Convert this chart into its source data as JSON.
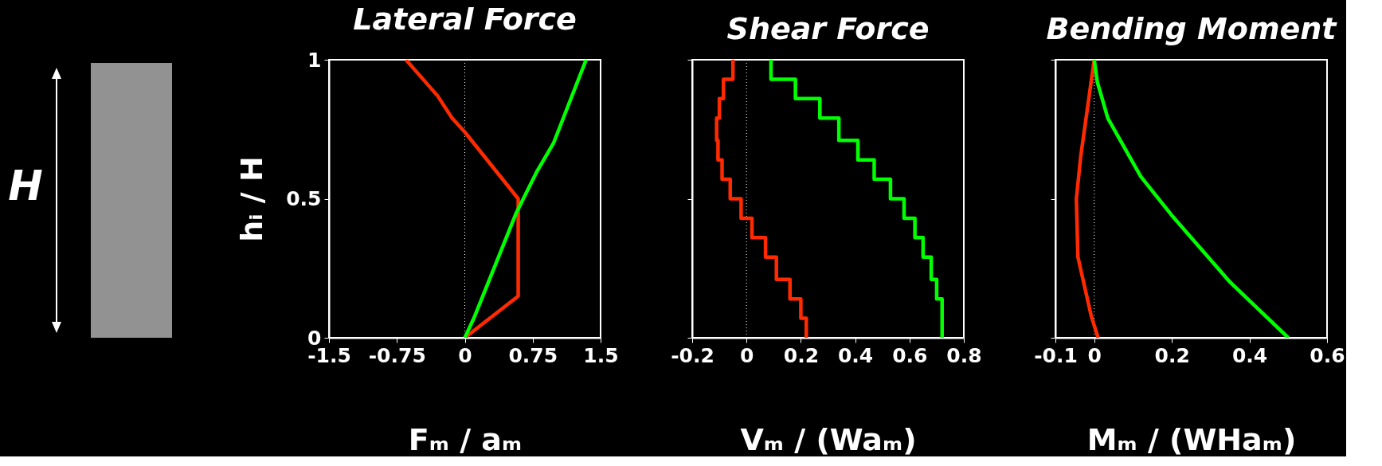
{
  "chart_data": [
    {
      "type": "other",
      "annotations": [
        "H"
      ]
    },
    {
      "type": "line",
      "title": "Lateral Force",
      "xlabel": "Fₘ / aₘ",
      "ylabel": "hᵢ / H",
      "xlim": [
        -1.5,
        1.5
      ],
      "xticks": [
        -1.5,
        -0.75,
        0,
        0.75,
        1.5
      ],
      "ylim": [
        0,
        1
      ],
      "yticks": [
        0,
        0.5,
        1
      ],
      "grid": false,
      "line_style": "solid",
      "ref_lines": [
        {
          "axis": "x",
          "value": 0,
          "line_style": "dotted",
          "color": "#ffffff"
        }
      ],
      "series": [
        {
          "color": "#ff2a00",
          "x": [
            -0.65,
            -0.3,
            -0.14,
            0,
            0.59,
            0.59,
            0
          ],
          "values": [
            1,
            0.87,
            0.79,
            0.74,
            0.5,
            0.15,
            0
          ]
        },
        {
          "color": "#00ff00",
          "x": [
            0,
            0.1,
            0.57,
            0.8,
            0.98,
            1.34
          ],
          "values": [
            0,
            0.07,
            0.45,
            0.6,
            0.7,
            1
          ]
        }
      ]
    },
    {
      "type": "line",
      "title": "Shear Force",
      "xlabel": "Vₘ / (Waₘ)",
      "xlim": [
        -0.2,
        0.8
      ],
      "xticks": [
        -0.2,
        0,
        0.2,
        0.4,
        0.6,
        0.8
      ],
      "ylim": [
        0,
        1
      ],
      "yticks": [
        0,
        0.5,
        1
      ],
      "tick_labels": "x",
      "grid": false,
      "line_style": "solid",
      "ref_lines": [
        {
          "axis": "x",
          "value": 0,
          "line_style": "dotted",
          "color": "#ffffff"
        }
      ],
      "series": [
        {
          "color": "#ff2a00",
          "x": [
            -0.05,
            -0.05,
            -0.085,
            -0.085,
            -0.1,
            -0.1,
            -0.11,
            -0.11,
            -0.105,
            -0.105,
            -0.09,
            -0.09,
            -0.06,
            -0.06,
            -0.02,
            -0.02,
            0.02,
            0.02,
            0.07,
            0.07,
            0.11,
            0.11,
            0.16,
            0.16,
            0.2,
            0.2,
            0.22,
            0.22
          ],
          "values": [
            1,
            0.93,
            0.93,
            0.86,
            0.86,
            0.79,
            0.79,
            0.71,
            0.71,
            0.64,
            0.64,
            0.57,
            0.57,
            0.5,
            0.5,
            0.43,
            0.43,
            0.36,
            0.36,
            0.29,
            0.29,
            0.21,
            0.21,
            0.14,
            0.14,
            0.07,
            0.07,
            0
          ]
        },
        {
          "color": "#00ff00",
          "x": [
            0.09,
            0.09,
            0.18,
            0.18,
            0.27,
            0.27,
            0.34,
            0.34,
            0.41,
            0.41,
            0.47,
            0.47,
            0.53,
            0.53,
            0.58,
            0.58,
            0.62,
            0.62,
            0.65,
            0.65,
            0.68,
            0.68,
            0.7,
            0.7,
            0.72,
            0.72,
            0.72,
            0.72
          ],
          "values": [
            1,
            0.93,
            0.93,
            0.86,
            0.86,
            0.79,
            0.79,
            0.71,
            0.71,
            0.64,
            0.64,
            0.57,
            0.57,
            0.5,
            0.5,
            0.43,
            0.43,
            0.36,
            0.36,
            0.29,
            0.29,
            0.21,
            0.21,
            0.14,
            0.14,
            0.07,
            0.07,
            0
          ]
        }
      ]
    },
    {
      "type": "line",
      "title": "Bending Moment",
      "xlabel": "Mₘ / (WHaₘ)",
      "xlim": [
        -0.1,
        0.6
      ],
      "xticks": [
        -0.1,
        0,
        0.2,
        0.4,
        0.6
      ],
      "ylim": [
        0,
        1
      ],
      "yticks": [
        0,
        0.5,
        1
      ],
      "tick_labels": "x",
      "grid": false,
      "line_style": "solid",
      "ref_lines": [
        {
          "axis": "x",
          "value": 0,
          "line_style": "dotted",
          "color": "#ffffff"
        }
      ],
      "series": [
        {
          "color": "#ff2a00",
          "x": [
            0,
            -0.035,
            -0.046,
            -0.042,
            -0.008,
            0.01
          ],
          "values": [
            1,
            0.65,
            0.5,
            0.29,
            0.08,
            0
          ]
        },
        {
          "color": "#00ff00",
          "x": [
            0,
            0.008,
            0.035,
            0.12,
            0.2,
            0.3,
            0.35,
            0.5
          ],
          "values": [
            1,
            0.92,
            0.79,
            0.58,
            0.44,
            0.28,
            0.2,
            0
          ]
        }
      ]
    }
  ]
}
